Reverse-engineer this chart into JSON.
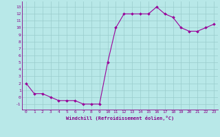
{
  "x": [
    0,
    1,
    2,
    3,
    4,
    5,
    6,
    7,
    8,
    9,
    10,
    11,
    12,
    13,
    14,
    15,
    16,
    17,
    18,
    19,
    20,
    21,
    22,
    23
  ],
  "y": [
    2,
    0.5,
    0.5,
    0,
    -0.5,
    -0.5,
    -0.5,
    -1,
    -1,
    -1,
    5,
    10,
    12,
    12,
    12,
    12,
    13,
    12,
    11.5,
    10,
    9.5,
    9.5,
    10,
    10.5
  ],
  "line_color": "#990099",
  "marker": "D",
  "marker_size": 2,
  "bg_color": "#b8e8e8",
  "grid_color": "#99cccc",
  "xlabel": "Windchill (Refroidissement éolien,°C)",
  "ylim": [
    -1.8,
    13.8
  ],
  "xlim": [
    -0.5,
    23.5
  ],
  "yticks": [
    -1,
    0,
    1,
    2,
    3,
    4,
    5,
    6,
    7,
    8,
    9,
    10,
    11,
    12,
    13
  ],
  "xticks": [
    0,
    1,
    2,
    3,
    4,
    5,
    6,
    7,
    8,
    9,
    10,
    11,
    12,
    13,
    14,
    15,
    16,
    17,
    18,
    19,
    20,
    21,
    22,
    23
  ],
  "tick_color": "#880088",
  "label_color": "#880088",
  "axis_color": "#880088"
}
